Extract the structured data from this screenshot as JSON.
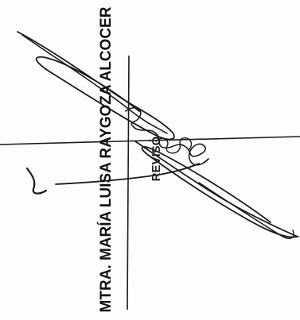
{
  "document": {
    "signer_name": "MTRA. MARÍA LUISA RAYGOZA ALCOCER",
    "stamp_label": "REVISÓ"
  },
  "colors": {
    "ink": "#111111",
    "paper": "#fdfdfd"
  }
}
